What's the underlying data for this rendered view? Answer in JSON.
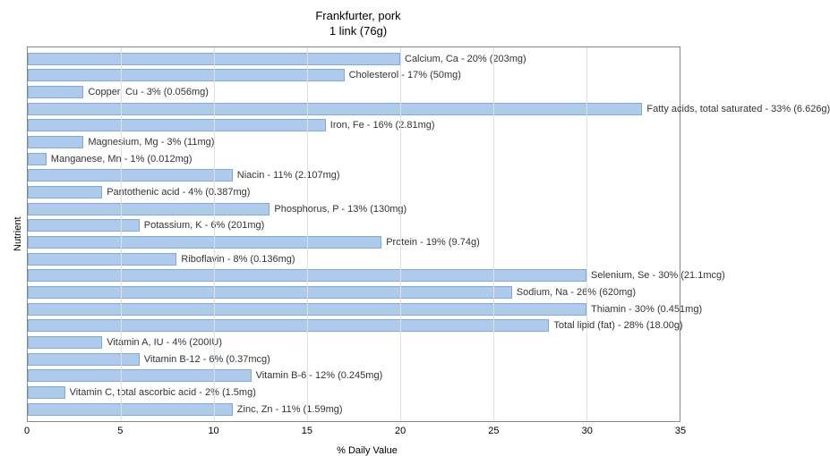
{
  "chart": {
    "type": "bar-horizontal",
    "title_line1": "Frankfurter, pork",
    "title_line2": "1 link (76g)",
    "title_fontsize": 13,
    "y_axis_label": "Nutrient",
    "x_axis_label": "% Daily Value",
    "label_fontsize": 11,
    "xlim": [
      0,
      35
    ],
    "xtick_step": 5,
    "xticks": [
      0,
      5,
      10,
      15,
      20,
      25,
      30,
      35
    ],
    "background_color": "#ffffff",
    "grid_color": "#e0e0e0",
    "bar_color": "#aecbeb",
    "bar_border_color": "#85a9d6",
    "axis_color": "#888888",
    "text_color": "#333333",
    "bars": [
      {
        "label": "Calcium, Ca - 20% (203mg)",
        "value": 20
      },
      {
        "label": "Cholesterol - 17% (50mg)",
        "value": 17
      },
      {
        "label": "Copper, Cu - 3% (0.056mg)",
        "value": 3
      },
      {
        "label": "Fatty acids, total saturated - 33% (6.626g)",
        "value": 33
      },
      {
        "label": "Iron, Fe - 16% (2.81mg)",
        "value": 16
      },
      {
        "label": "Magnesium, Mg - 3% (11mg)",
        "value": 3
      },
      {
        "label": "Manganese, Mn - 1% (0.012mg)",
        "value": 1
      },
      {
        "label": "Niacin - 11% (2.107mg)",
        "value": 11
      },
      {
        "label": "Pantothenic acid - 4% (0.387mg)",
        "value": 4
      },
      {
        "label": "Phosphorus, P - 13% (130mg)",
        "value": 13
      },
      {
        "label": "Potassium, K - 6% (201mg)",
        "value": 6
      },
      {
        "label": "Protein - 19% (9.74g)",
        "value": 19
      },
      {
        "label": "Riboflavin - 8% (0.136mg)",
        "value": 8
      },
      {
        "label": "Selenium, Se - 30% (21.1mcg)",
        "value": 30
      },
      {
        "label": "Sodium, Na - 26% (620mg)",
        "value": 26
      },
      {
        "label": "Thiamin - 30% (0.451mg)",
        "value": 30
      },
      {
        "label": "Total lipid (fat) - 28% (18.00g)",
        "value": 28
      },
      {
        "label": "Vitamin A, IU - 4% (200IU)",
        "value": 4
      },
      {
        "label": "Vitamin B-12 - 6% (0.37mcg)",
        "value": 6
      },
      {
        "label": "Vitamin B-6 - 12% (0.245mg)",
        "value": 12
      },
      {
        "label": "Vitamin C, total ascorbic acid - 2% (1.5mg)",
        "value": 2
      },
      {
        "label": "Zinc, Zn - 11% (1.59mg)",
        "value": 11
      }
    ]
  }
}
